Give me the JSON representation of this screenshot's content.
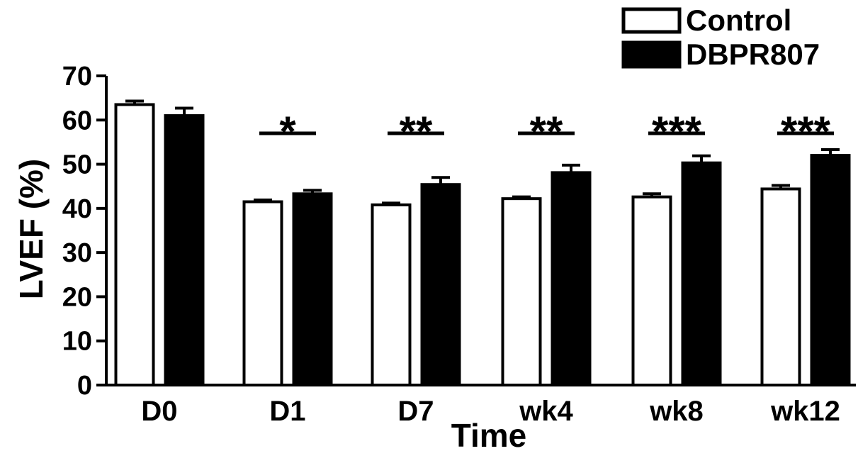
{
  "chart_data": {
    "type": "bar",
    "title": "",
    "xlabel": "Time",
    "ylabel": "LVEF (%)",
    "ylim": [
      0,
      70
    ],
    "yticks": [
      "0",
      "10",
      "20",
      "30",
      "40",
      "50",
      "60",
      "70"
    ],
    "categories": [
      "D0",
      "D1",
      "D7",
      "wk4",
      "wk8",
      "wk12"
    ],
    "series": [
      {
        "name": "Control",
        "color": "#ffffff",
        "values": [
          63.5,
          41.5,
          40.8,
          42.2,
          42.6,
          44.4
        ],
        "errors": [
          0.8,
          0.4,
          0.4,
          0.4,
          0.7,
          0.8
        ]
      },
      {
        "name": "DBPR807",
        "color": "#000000",
        "values": [
          61.0,
          43.3,
          45.4,
          48.1,
          50.3,
          52.0
        ],
        "errors": [
          1.7,
          0.8,
          1.6,
          1.7,
          1.6,
          1.3
        ]
      }
    ],
    "significance": [
      "",
      "*",
      "**",
      "**",
      "***",
      "***"
    ],
    "legend_position": "top-right",
    "grid": false
  }
}
